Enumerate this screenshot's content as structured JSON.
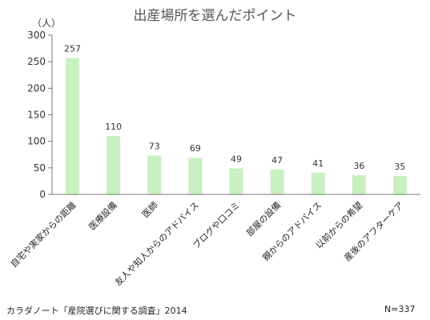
{
  "chart_data": {
    "type": "bar",
    "title": "出産場所を選んだポイント",
    "unit_label": "（人）",
    "categories": [
      "自宅や実家からの距離",
      "医療設備",
      "医師",
      "友人や知人からのアドバイス",
      "ブログや口コミ",
      "部屋の設備",
      "親からのアドバイス",
      "以前からの希望",
      "産後のアフターケア"
    ],
    "values": [
      257,
      110,
      73,
      69,
      49,
      47,
      41,
      36,
      35
    ],
    "ylim": [
      0,
      300
    ],
    "yticks": [
      0,
      50,
      100,
      150,
      200,
      250,
      300
    ],
    "bar_color": "#c9f0c0",
    "source": "カラダノート「産院選びに関する調査」2014",
    "sample_size": "N=337"
  }
}
